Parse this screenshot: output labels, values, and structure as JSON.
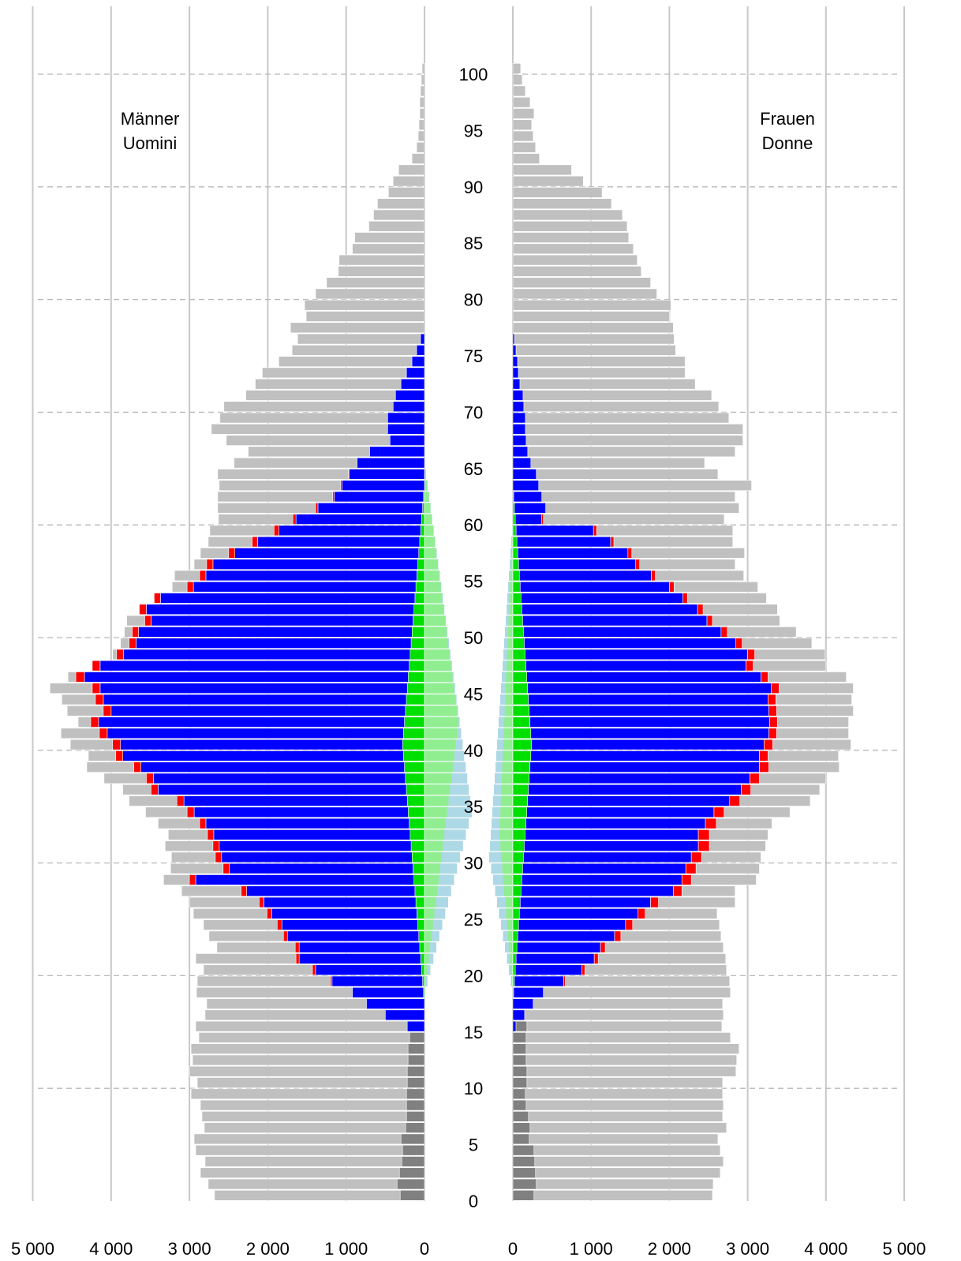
{
  "chart_data": {
    "type": "bar",
    "orientation": "population-pyramid",
    "grid": true,
    "age_tick_labels": [
      "0",
      "5",
      "10",
      "15",
      "20",
      "25",
      "30",
      "35",
      "40",
      "45",
      "50",
      "55",
      "60",
      "65",
      "70",
      "75",
      "80",
      "85",
      "90",
      "95",
      "100"
    ],
    "x_tick_labels_left": [
      "5 000",
      "4 000",
      "3 000",
      "2 000",
      "1 000",
      "0"
    ],
    "x_tick_labels_right": [
      "0",
      "1 000",
      "2 000",
      "3 000",
      "4 000",
      "5 000"
    ],
    "xlim": [
      0,
      5000
    ],
    "ylim": [
      0,
      100
    ],
    "panels": {
      "men": {
        "label_line1": "Männer",
        "label_line2": "Uomini"
      },
      "women": {
        "label_line1": "Frauen",
        "label_line2": "Donne"
      }
    },
    "colors": {
      "total": "#c0c0c0",
      "children": "#808080",
      "employed": "#0000ff",
      "unemployed": "#ff0000",
      "green": "#00e000",
      "light_green": "#90ee90",
      "light_blue": "#add8e6"
    },
    "men": {
      "total": [
        2680,
        2760,
        2860,
        2800,
        2920,
        2940,
        2810,
        2840,
        2860,
        2980,
        2900,
        3000,
        2960,
        2980,
        2880,
        2920,
        2800,
        2780,
        2910,
        2900,
        2820,
        2920,
        2650,
        2750,
        2820,
        2950,
        3000,
        3100,
        3330,
        3240,
        3230,
        3310,
        3270,
        3400,
        3560,
        3770,
        3850,
        4090,
        4310,
        4290,
        4520,
        4640,
        4420,
        4560,
        4630,
        4780,
        4550,
        4220,
        3980,
        3880,
        3830,
        3800,
        3340,
        3250,
        3220,
        3190,
        2940,
        2860,
        2760,
        2740,
        2630,
        2640,
        2640,
        2620,
        2640,
        2430,
        2250,
        2530,
        2720,
        2610,
        2560,
        2280,
        2160,
        2070,
        1860,
        1690,
        1620,
        1710,
        1510,
        1530,
        1390,
        1250,
        1100,
        1090,
        920,
        890,
        710,
        650,
        600,
        460,
        400,
        330,
        160,
        100,
        80,
        70,
        60,
        60,
        50,
        40,
        30
      ],
      "children": [
        310,
        350,
        320,
        290,
        280,
        300,
        240,
        230,
        230,
        230,
        220,
        220,
        210,
        210,
        190,
        170
      ],
      "employed": [
        0,
        0,
        0,
        0,
        0,
        0,
        0,
        0,
        0,
        0,
        0,
        0,
        0,
        0,
        0,
        220,
        500,
        740,
        920,
        1180,
        1390,
        1600,
        1600,
        1750,
        1820,
        1950,
        2050,
        2270,
        2920,
        2490,
        2590,
        2620,
        2690,
        2790,
        2940,
        3070,
        3400,
        3460,
        3620,
        3850,
        3880,
        4050,
        4160,
        4000,
        4100,
        4140,
        4340,
        4140,
        3840,
        3680,
        3650,
        3490,
        3550,
        3370,
        2950,
        2790,
        2700,
        2420,
        2130,
        1860,
        1640,
        1360,
        1150,
        1050,
        960,
        860,
        700,
        440,
        470,
        470,
        400,
        370,
        300,
        230,
        160,
        100,
        50
      ],
      "unemployed": [
        0,
        0,
        0,
        0,
        0,
        0,
        0,
        0,
        0,
        0,
        0,
        0,
        0,
        0,
        0,
        0,
        0,
        0,
        0,
        20,
        40,
        40,
        50,
        50,
        60,
        60,
        60,
        70,
        80,
        80,
        80,
        80,
        80,
        80,
        90,
        90,
        90,
        90,
        90,
        90,
        100,
        100,
        100,
        100,
        100,
        100,
        110,
        100,
        90,
        90,
        80,
        80,
        90,
        80,
        80,
        80,
        80,
        80,
        70,
        60,
        40,
        30,
        20,
        20,
        10
      ]
    },
    "women": {
      "total": [
        2550,
        2560,
        2650,
        2690,
        2650,
        2620,
        2730,
        2680,
        2690,
        2680,
        2680,
        2850,
        2860,
        2890,
        2780,
        2670,
        2690,
        2680,
        2780,
        2770,
        2730,
        2720,
        2690,
        2660,
        2640,
        2610,
        2840,
        2840,
        3110,
        3150,
        3170,
        3230,
        3260,
        3310,
        3540,
        3800,
        3920,
        4000,
        4170,
        4160,
        4320,
        4290,
        4290,
        4350,
        4330,
        4350,
        4260,
        4000,
        3990,
        3820,
        3620,
        3410,
        3380,
        3240,
        3130,
        2950,
        2840,
        2960,
        2810,
        2810,
        2700,
        2890,
        2840,
        3050,
        2620,
        2450,
        2840,
        2940,
        2940,
        2760,
        2630,
        2540,
        2330,
        2200,
        2200,
        2080,
        2060,
        2050,
        2000,
        2020,
        1840,
        1760,
        1640,
        1590,
        1540,
        1480,
        1460,
        1400,
        1260,
        1140,
        900,
        750,
        340,
        290,
        260,
        240,
        270,
        220,
        160,
        120,
        100
      ],
      "children": [
        270,
        300,
        290,
        280,
        270,
        210,
        220,
        200,
        170,
        160,
        180,
        180,
        170,
        170,
        170,
        180
      ],
      "employed": [
        0,
        0,
        0,
        0,
        0,
        0,
        0,
        0,
        0,
        0,
        0,
        0,
        0,
        0,
        0,
        40,
        150,
        260,
        390,
        650,
        880,
        1040,
        1120,
        1300,
        1440,
        1600,
        1760,
        2050,
        2160,
        2210,
        2280,
        2370,
        2370,
        2460,
        2570,
        2770,
        2920,
        3030,
        3150,
        3150,
        3210,
        3270,
        3280,
        3270,
        3260,
        3300,
        3170,
        2980,
        3000,
        2850,
        2660,
        2480,
        2360,
        2170,
        2000,
        1770,
        1570,
        1470,
        1250,
        1030,
        370,
        420,
        370,
        330,
        300,
        230,
        190,
        170,
        160,
        160,
        140,
        130,
        90,
        70,
        60,
        40,
        20
      ],
      "unemployed": [
        0,
        0,
        0,
        0,
        0,
        0,
        0,
        0,
        0,
        0,
        0,
        0,
        0,
        0,
        0,
        0,
        0,
        0,
        0,
        20,
        40,
        50,
        60,
        80,
        90,
        90,
        100,
        110,
        120,
        130,
        130,
        140,
        140,
        140,
        130,
        130,
        120,
        120,
        120,
        110,
        110,
        100,
        100,
        100,
        100,
        100,
        90,
        90,
        90,
        80,
        80,
        70,
        70,
        60,
        60,
        50,
        50,
        50,
        40,
        40,
        20
      ]
    }
  }
}
